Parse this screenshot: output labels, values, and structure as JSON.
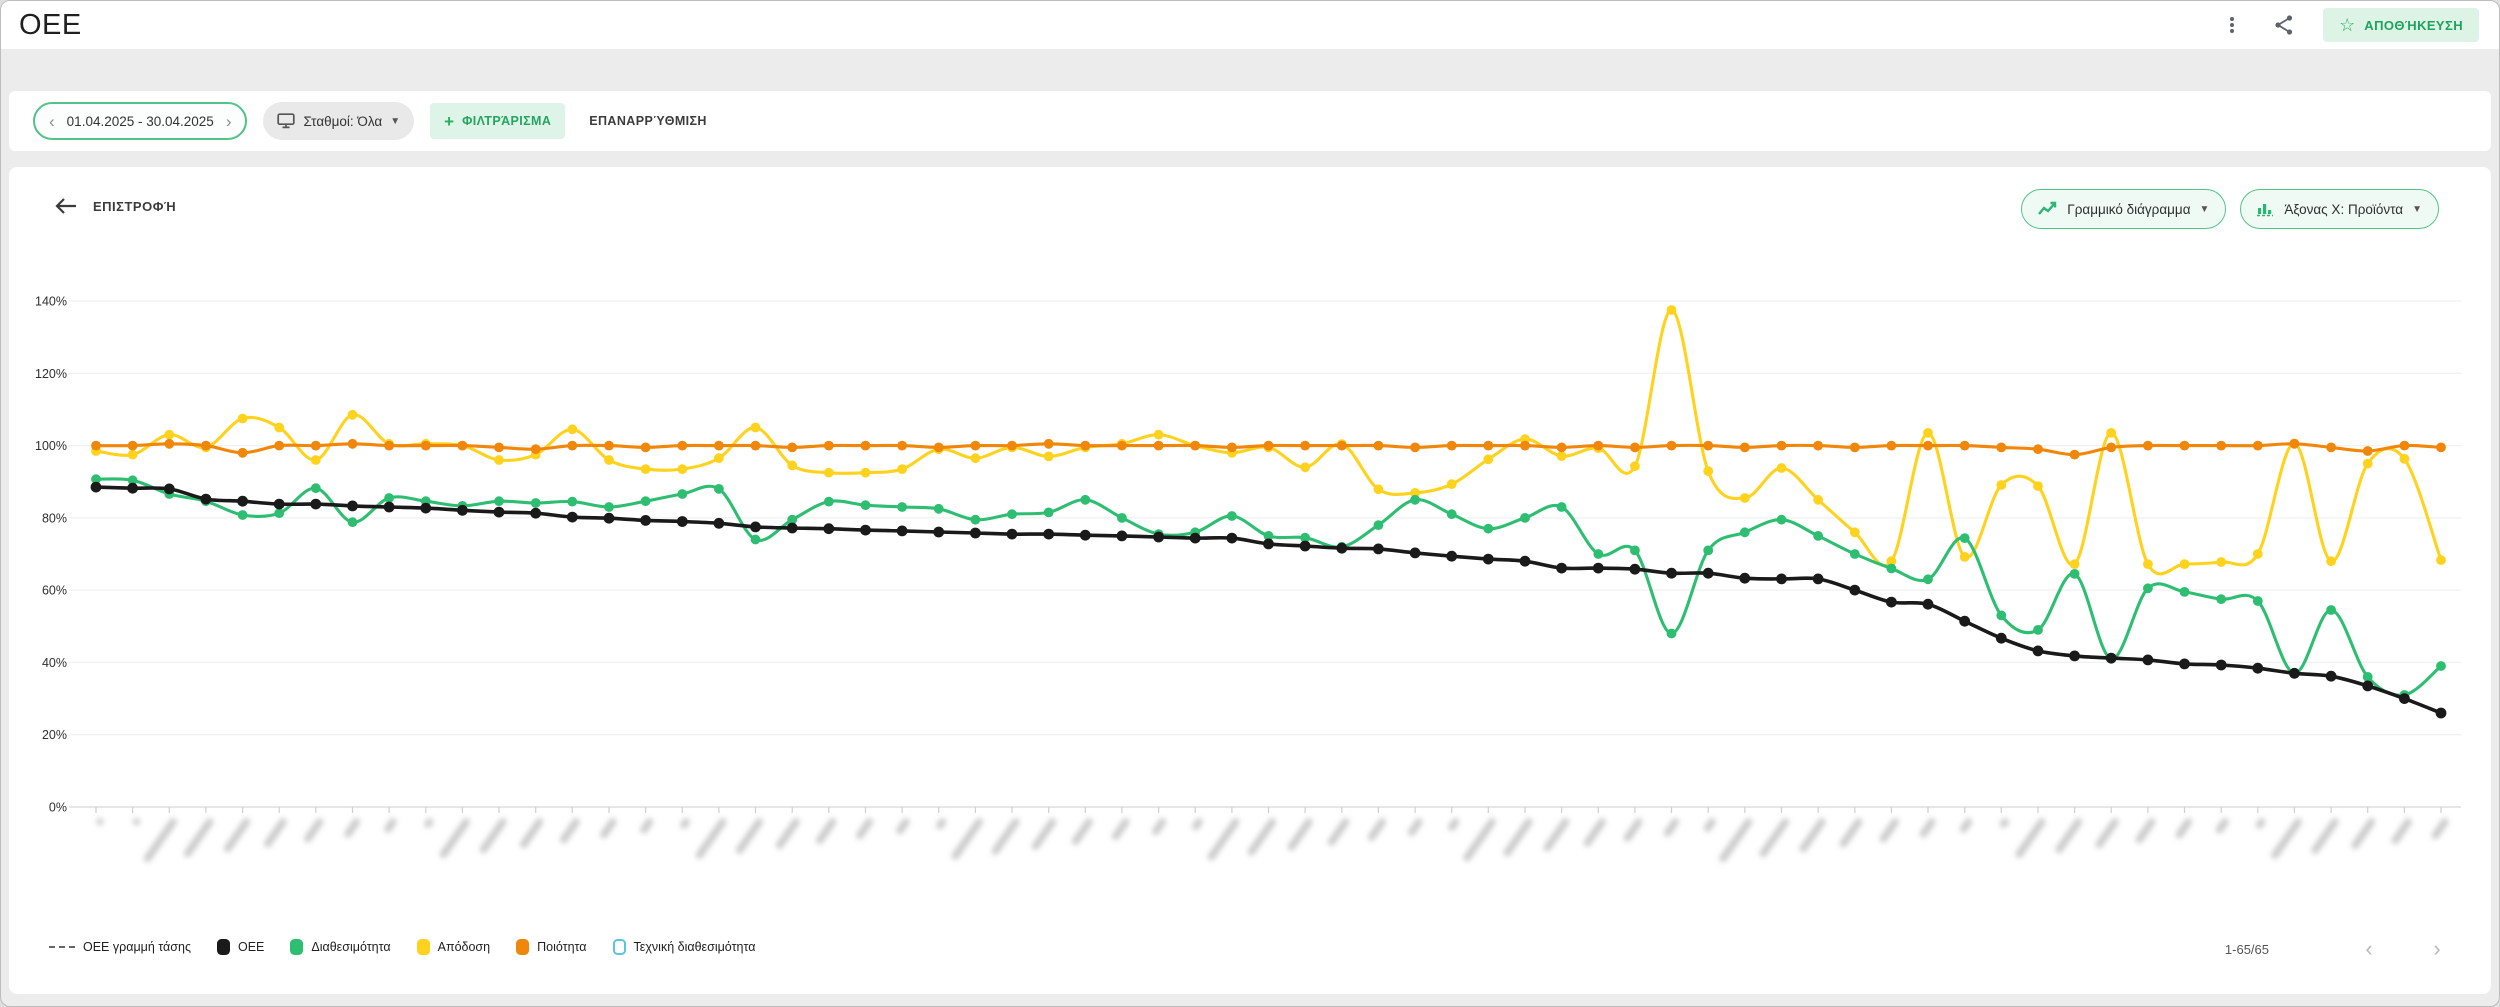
{
  "header": {
    "title": "OEE",
    "save_label": "ΑΠΟΘΉΚΕΥΣΗ"
  },
  "filter_bar": {
    "date_range": "01.04.2025 - 30.04.2025",
    "prev_chevron": "‹",
    "next_chevron": "›",
    "stations_label": "Σταθμοί: Όλα",
    "filter_label": "ΦΙΛΤΡΆΡΙΣΜΑ",
    "reset_label": "ΕΠΑΝΑΡΡΎΘΜΙΣΗ"
  },
  "chart_header": {
    "back_label": "ΕΠΙΣΤΡΟΦΉ",
    "chart_type_label": "Γραμμικό διάγραμμα",
    "x_axis_selector_label": "Άξονας X: Προϊόντα"
  },
  "legend": [
    {
      "label": "OEE γραμμή τάσης",
      "type": "dashed",
      "color": "#666666"
    },
    {
      "label": "OEE",
      "type": "swatch",
      "color": "#1a1a1a"
    },
    {
      "label": "Διαθεσιμότητα",
      "type": "swatch",
      "color": "#2ebe71"
    },
    {
      "label": "Απόδοση",
      "type": "swatch",
      "color": "#ffd21e"
    },
    {
      "label": "Ποιότητα",
      "type": "swatch",
      "color": "#f0860a"
    },
    {
      "label": "Τεχνική διαθεσιμότητα",
      "type": "swatch-hollow",
      "color": "#59c5e4"
    }
  ],
  "pagination": {
    "label": "1-65/65",
    "prev": "‹",
    "next": "›"
  },
  "chart_data": {
    "type": "line",
    "title": "OEE",
    "xlabel": "Προϊόντα (labels blurred/redacted in screenshot)",
    "ylabel": "",
    "x_count": 65,
    "x_labels_blurred": true,
    "ylim": [
      0,
      145
    ],
    "y_ticks": [
      "0%",
      "20%",
      "40%",
      "60%",
      "80%",
      "100%",
      "120%",
      "140%"
    ],
    "grid": true,
    "legend_position": "bottom",
    "series": [
      {
        "name": "OEE",
        "color": "#1a1a1a",
        "values": [
          88.5,
          88.2,
          88,
          85.2,
          84.6,
          83.8,
          83.8,
          83.3,
          83,
          82.7,
          82.1,
          81.6,
          81.3,
          80.2,
          79.9,
          79.3,
          79,
          78.5,
          77.5,
          77.2,
          77,
          76.6,
          76.4,
          76.1,
          75.8,
          75.5,
          75.5,
          75.2,
          75,
          74.7,
          74.4,
          74.4,
          72.8,
          72.2,
          71.6,
          71.4,
          70.3,
          69.4,
          68.6,
          68,
          66.1,
          66.1,
          65.8,
          64.7,
          64.7,
          63.3,
          63.1,
          63.1,
          60,
          56.7,
          56.1,
          51.4,
          46.7,
          43.2,
          41.8,
          41.2,
          40.7,
          39.6,
          39.3,
          38.4,
          37,
          36.2,
          33.5,
          30,
          26
        ]
      },
      {
        "name": "Διαθεσιμότητα",
        "color": "#2ebe71",
        "values": [
          90.7,
          90.4,
          86.6,
          84.6,
          80.8,
          81.3,
          88.2,
          78.8,
          85.5,
          84.6,
          83.3,
          84.6,
          84.1,
          84.5,
          83,
          84.6,
          86.6,
          88,
          74,
          79.5,
          84.5,
          83.5,
          83,
          82.5,
          79.5,
          81,
          81.5,
          85,
          80,
          75.5,
          76,
          80.5,
          75,
          74.5,
          72,
          78,
          85,
          81,
          77,
          80,
          83,
          70,
          71,
          48,
          71,
          76,
          79.5,
          75,
          70,
          66,
          63,
          74.4,
          53,
          49,
          64.5,
          41,
          60.5,
          59.5,
          57.5,
          57,
          37,
          54.5,
          36,
          31,
          39
        ]
      },
      {
        "name": "Απόδοση",
        "color": "#ffd21e",
        "values": [
          98.5,
          97.5,
          103,
          99.5,
          107.5,
          105,
          96,
          108.5,
          100.5,
          100.5,
          100,
          96,
          97.5,
          104.5,
          96,
          93.5,
          93.5,
          96.5,
          105,
          94.5,
          92.5,
          92.5,
          93.5,
          99,
          96.5,
          99.5,
          97,
          99.5,
          100.5,
          103,
          100,
          98,
          99.5,
          94,
          100.4,
          87.9,
          86.9,
          89.3,
          96.2,
          101.8,
          97.1,
          99.3,
          94.3,
          137.5,
          92.9,
          85.5,
          93.8,
          85,
          76,
          68,
          103.5,
          69.2,
          89.1,
          88.8,
          67.2,
          103.5,
          67.2,
          67.2,
          67.8,
          70,
          100.6,
          68,
          95,
          96.3,
          68.3
        ]
      },
      {
        "name": "Ποιότητα",
        "color": "#f0860a",
        "values": [
          100,
          100,
          100.5,
          100,
          98,
          100,
          100,
          100.5,
          100,
          100,
          100,
          99.5,
          99,
          100,
          100,
          99.5,
          100,
          100,
          100,
          99.5,
          100,
          100,
          100,
          99.5,
          100,
          100,
          100.5,
          100,
          100,
          100,
          100,
          99.5,
          100,
          100,
          100,
          100,
          99.5,
          100,
          100,
          100,
          99.5,
          100,
          99.5,
          100,
          100,
          99.5,
          100,
          100,
          99.5,
          100,
          100,
          100,
          99.5,
          99,
          97.5,
          99.5,
          100,
          100,
          100,
          100,
          100.5,
          99.5,
          98.5,
          100,
          99.5
        ]
      }
    ]
  }
}
